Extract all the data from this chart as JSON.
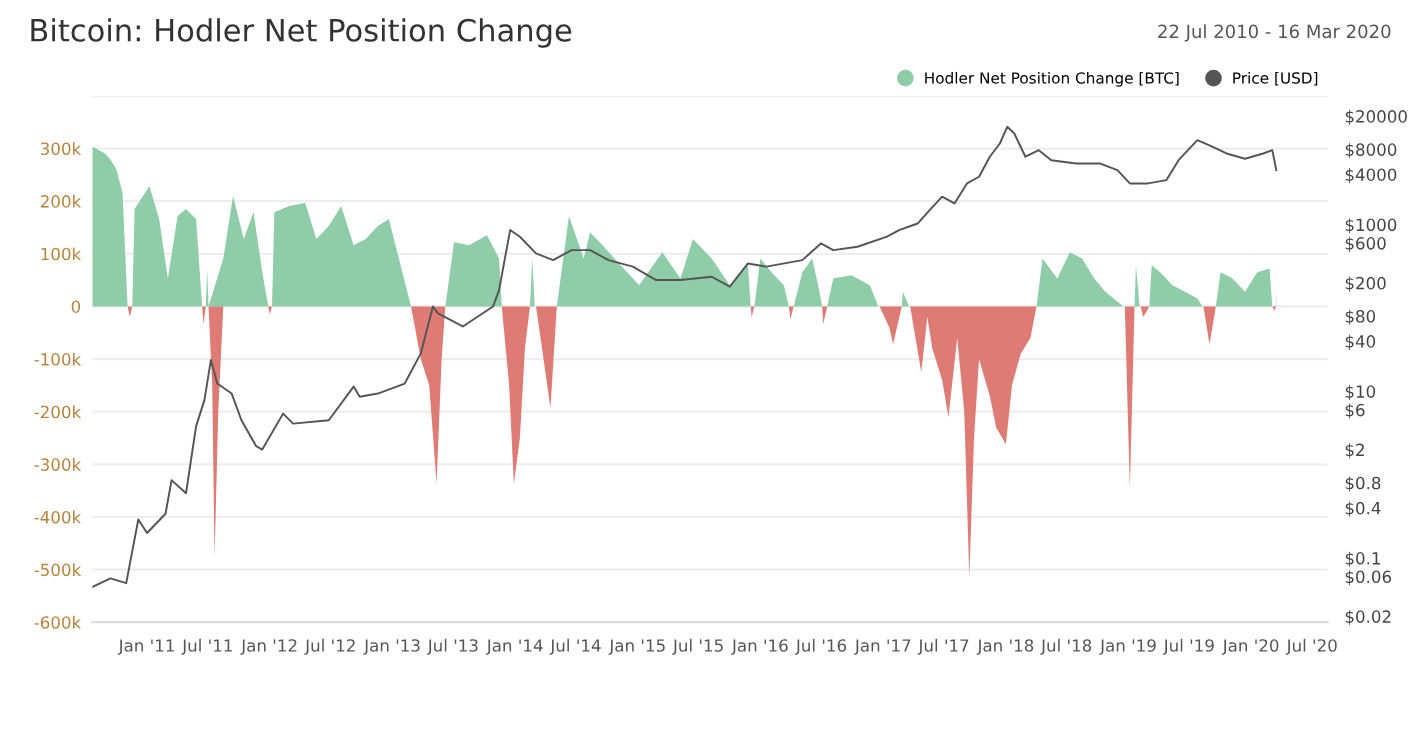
{
  "chart_data": {
    "type": "area",
    "title": "Bitcoin: Hodler Net Position Change",
    "subtitle": "22 Jul 2010 - 16 Mar 2020",
    "series": [
      {
        "name": "Hodler Net Position Change [BTC]",
        "color": "#8fcca8",
        "x": [
          "2010-07-22",
          "2010-08-30",
          "2010-09-14",
          "2010-10-02",
          "2010-10-20",
          "2010-11-04",
          "2010-11-18",
          "2010-11-25",
          "2011-01-08",
          "2011-02-06",
          "2011-03-04",
          "2011-04-02",
          "2011-04-27",
          "2011-05-27",
          "2011-06-14",
          "2011-06-25",
          "2011-06-29",
          "2011-07-03",
          "2011-08-16",
          "2011-09-14",
          "2011-10-16",
          "2011-11-14",
          "2011-12-10",
          "2011-12-28",
          "2012-01-08",
          "2012-01-15",
          "2012-02-28",
          "2012-04-16",
          "2012-05-19",
          "2012-06-25",
          "2012-08-01",
          "2012-09-07",
          "2012-10-13",
          "2012-11-18",
          "2012-12-21",
          "2013-01-30",
          "2013-02-25",
          "2013-06-07",
          "2013-07-03",
          "2013-08-16",
          "2013-10-09",
          "2013-11-14",
          "2013-11-22",
          "2014-02-14",
          "2014-02-21",
          "2014-02-28",
          "2014-05-05",
          "2014-06-10",
          "2014-07-24",
          "2014-08-12",
          "2014-09-18",
          "2014-11-11",
          "2015-01-05",
          "2015-03-15",
          "2015-05-08",
          "2015-06-14",
          "2015-08-09",
          "2015-10-02",
          "2015-11-25",
          "2015-12-03",
          "2015-12-14",
          "2016-01-01",
          "2016-02-03",
          "2016-03-11",
          "2016-03-26",
          "2016-04-09",
          "2016-05-05",
          "2016-06-03",
          "2016-06-21",
          "2016-07-03",
          "2016-07-18",
          "2016-08-05",
          "2016-09-28",
          "2016-11-22",
          "2016-12-17",
          "2017-02-25",
          "2017-02-28",
          "2017-03-19",
          "2018-04-02",
          "2018-04-20",
          "2018-06-03",
          "2018-07-10",
          "2018-08-16",
          "2018-09-21",
          "2018-10-24",
          "2018-12-17",
          "2019-01-19",
          "2019-01-23",
          "2019-02-03",
          "2019-03-04",
          "2019-03-11",
          "2019-04-05",
          "2019-05-12",
          "2019-06-18",
          "2019-07-25",
          "2019-08-09",
          "2019-09-18",
          "2019-10-02",
          "2019-11-07",
          "2019-12-14",
          "2020-01-19",
          "2020-02-25",
          "2020-03-04",
          "2020-03-15",
          "2020-03-16"
        ],
        "values": [
          304000,
          290000,
          279000,
          260000,
          216000,
          0,
          0,
          185000,
          229000,
          166000,
          53000,
          172000,
          185000,
          166000,
          0,
          0,
          72000,
          0,
          91000,
          210000,
          128000,
          179000,
          65000,
          0,
          0,
          179000,
          191000,
          197000,
          128000,
          153000,
          191000,
          116000,
          128000,
          153000,
          166000,
          65000,
          0,
          0,
          122000,
          116000,
          135000,
          91000,
          0,
          0,
          91000,
          0,
          0,
          172000,
          91000,
          141000,
          116000,
          78000,
          40000,
          103000,
          53000,
          128000,
          91000,
          40000,
          80000,
          0,
          0,
          91000,
          65000,
          40000,
          0,
          0,
          65000,
          91000,
          40000,
          0,
          0,
          53000,
          59000,
          40000,
          0,
          0,
          28000,
          0,
          0,
          91000,
          53000,
          103000,
          91000,
          53000,
          28000,
          0,
          0,
          78000,
          0,
          0,
          78000,
          65000,
          40000,
          28000,
          15000,
          0,
          0,
          65000,
          53000,
          28000,
          65000,
          72000,
          0,
          0,
          40000
        ]
      },
      {
        "color": "#de7b74",
        "x": [
          "2010-11-04",
          "2010-11-11",
          "2010-11-18",
          "2011-06-14",
          "2011-06-18",
          "2011-06-25",
          "2011-07-03",
          "2011-07-14",
          "2011-07-21",
          "2011-08-01",
          "2011-08-16",
          "2011-12-28",
          "2012-01-01",
          "2012-01-08",
          "2013-02-25",
          "2013-03-26",
          "2013-04-20",
          "2013-05-12",
          "2013-05-27",
          "2013-06-07",
          "2013-11-22",
          "2013-12-14",
          "2013-12-28",
          "2014-01-15",
          "2014-01-30",
          "2014-02-14",
          "2014-03-04",
          "2014-03-22",
          "2014-04-16",
          "2014-05-05",
          "2015-12-03",
          "2015-12-06",
          "2015-12-14",
          "2016-03-26",
          "2016-03-30",
          "2016-04-09",
          "2016-07-03",
          "2016-07-06",
          "2016-07-18",
          "2016-12-21",
          "2017-01-19",
          "2017-01-30",
          "2017-02-25",
          "2017-03-22",
          "2017-04-24",
          "2017-05-12",
          "2017-05-27",
          "2017-06-25",
          "2017-07-14",
          "2017-08-09",
          "2017-08-30",
          "2017-09-14",
          "2017-09-28",
          "2017-10-13",
          "2017-11-14",
          "2017-12-03",
          "2018-01-01",
          "2018-01-19",
          "2018-02-14",
          "2018-03-15",
          "2018-04-02",
          "2018-12-21",
          "2019-01-05",
          "2019-01-19",
          "2019-02-06",
          "2019-02-14",
          "2019-03-04",
          "2019-08-12",
          "2019-08-30",
          "2019-09-18",
          "2020-03-04",
          "2020-03-11",
          "2020-03-15"
        ],
        "values": [
          0,
          -20000,
          0,
          0,
          -34000,
          0,
          0,
          -150000,
          -477000,
          -200000,
          0,
          0,
          -15000,
          0,
          0,
          -100000,
          -150000,
          -337000,
          -100000,
          0,
          0,
          -150000,
          -337000,
          -250000,
          -80000,
          0,
          0,
          -80000,
          -193000,
          0,
          0,
          -20000,
          0,
          0,
          -25000,
          0,
          0,
          -34000,
          0,
          0,
          -40000,
          -72000,
          0,
          0,
          -125000,
          -20000,
          -80000,
          -140000,
          -210000,
          -60000,
          -200000,
          -515000,
          -250000,
          -100000,
          -170000,
          -230000,
          -262000,
          -150000,
          -90000,
          -60000,
          0,
          0,
          -345000,
          0,
          0,
          -20000,
          0,
          0,
          -72000,
          0,
          0,
          -8000,
          0
        ]
      },
      {
        "name": "Price [USD]",
        "color": "#555555",
        "type": "line",
        "axis": "y2",
        "x": [
          "2010-07-22",
          "2010-09-14",
          "2010-10-31",
          "2010-11-11",
          "2010-12-06",
          "2011-01-01",
          "2011-02-25",
          "2011-03-15",
          "2011-04-27",
          "2011-05-27",
          "2011-06-21",
          "2011-07-10",
          "2011-07-29",
          "2011-09-10",
          "2011-10-09",
          "2011-11-22",
          "2011-12-10",
          "2012-02-10",
          "2012-03-11",
          "2012-06-25",
          "2012-09-07",
          "2012-09-25",
          "2012-11-18",
          "2013-02-06",
          "2013-03-26",
          "2013-05-01",
          "2013-05-16",
          "2013-07-29",
          "2013-10-27",
          "2013-11-14",
          "2013-12-17",
          "2014-01-15",
          "2014-03-04",
          "2014-04-24",
          "2014-06-18",
          "2014-08-12",
          "2014-10-06",
          "2014-12-17",
          "2015-02-25",
          "2015-05-08",
          "2015-08-09",
          "2015-10-02",
          "2015-11-25",
          "2016-01-19",
          "2016-05-05",
          "2016-06-29",
          "2016-08-05",
          "2016-10-16",
          "2017-01-12",
          "2017-02-17",
          "2017-04-13",
          "2017-05-19",
          "2017-06-25",
          "2017-08-01",
          "2017-09-07",
          "2017-10-13",
          "2017-11-14",
          "2017-12-14",
          "2018-01-05",
          "2018-01-26",
          "2018-02-28",
          "2018-04-09",
          "2018-05-16",
          "2018-07-29",
          "2018-10-09",
          "2018-11-29",
          "2019-01-05",
          "2019-02-28",
          "2019-04-24",
          "2019-05-30",
          "2019-07-25",
          "2019-08-30",
          "2019-10-20",
          "2019-12-14",
          "2020-02-06",
          "2020-03-04",
          "2020-03-16"
        ],
        "values": [
          0.045,
          0.057,
          0.05,
          0.086,
          0.29,
          0.2,
          0.34,
          0.86,
          0.6,
          3.8,
          7.9,
          23.7,
          12.4,
          9.4,
          4.5,
          2.2,
          2.0,
          5.4,
          4.1,
          4.5,
          11.4,
          8.6,
          9.4,
          12.4,
          28.5,
          104,
          86,
          60,
          104,
          164,
          860,
          716,
          451,
          375,
          494,
          494,
          375,
          313,
          216,
          216,
          237,
          180,
          342,
          313,
          375,
          594,
          494,
          542,
          716,
          860,
          1030,
          1493,
          2163,
          1795,
          3120,
          3750,
          6520,
          9400,
          14900,
          12400,
          6520,
          7820,
          5930,
          5400,
          5400,
          4500,
          3120,
          3120,
          3420,
          5930,
          10300,
          8900,
          7130,
          6170,
          7130,
          7820,
          4500
        ]
      }
    ],
    "xlim": [
      "2010-07-22",
      "2020-08-16"
    ],
    "xticks": [
      {
        "value": "2011-01-01",
        "label": "Jan '11"
      },
      {
        "value": "2011-07-01",
        "label": "Jul '11"
      },
      {
        "value": "2012-01-01",
        "label": "Jan '12"
      },
      {
        "value": "2012-07-01",
        "label": "Jul '12"
      },
      {
        "value": "2013-01-01",
        "label": "Jan '13"
      },
      {
        "value": "2013-07-01",
        "label": "Jul '13"
      },
      {
        "value": "2014-01-01",
        "label": "Jan '14"
      },
      {
        "value": "2014-07-01",
        "label": "Jul '14"
      },
      {
        "value": "2015-01-01",
        "label": "Jan '15"
      },
      {
        "value": "2015-07-01",
        "label": "Jul '15"
      },
      {
        "value": "2016-01-01",
        "label": "Jan '16"
      },
      {
        "value": "2016-07-01",
        "label": "Jul '16"
      },
      {
        "value": "2017-01-01",
        "label": "Jan '17"
      },
      {
        "value": "2017-07-01",
        "label": "Jul '17"
      },
      {
        "value": "2018-01-01",
        "label": "Jan '18"
      },
      {
        "value": "2018-07-01",
        "label": "Jul '18"
      },
      {
        "value": "2019-01-01",
        "label": "Jan '19"
      },
      {
        "value": "2019-07-01",
        "label": "Jul '19"
      },
      {
        "value": "2020-01-01",
        "label": "Jan '20"
      },
      {
        "value": "2020-07-01",
        "label": "Jul '20"
      }
    ],
    "ylim": [
      -600000,
      400000
    ],
    "yticks": [
      {
        "value": -600000,
        "label": "-600k"
      },
      {
        "value": -500000,
        "label": "-500k"
      },
      {
        "value": -400000,
        "label": "-400k"
      },
      {
        "value": -300000,
        "label": "-300k"
      },
      {
        "value": -200000,
        "label": "-200k"
      },
      {
        "value": -100000,
        "label": "-100k"
      },
      0,
      {
        "value": 100000,
        "label": "100k"
      },
      {
        "value": 200000,
        "label": "200k"
      },
      {
        "value": 300000,
        "label": "300k"
      },
      {
        "value": 400000,
        "label": null
      }
    ],
    "log": "y2",
    "y2lim": [
      0.017,
      35000
    ],
    "y2ticks": [
      {
        "value": 0.02,
        "label": "$0.02"
      },
      {
        "value": 0.06,
        "label": "$0.06"
      },
      {
        "value": 0.1,
        "label": "$0.1"
      },
      {
        "value": 0.4,
        "label": "$0.4"
      },
      {
        "value": 0.8,
        "label": "$0.8"
      },
      {
        "value": 2,
        "label": "$2"
      },
      {
        "value": 6,
        "label": "$6"
      },
      {
        "value": 10,
        "label": "$10"
      },
      {
        "value": 40,
        "label": "$40"
      },
      {
        "value": 80,
        "label": "$80"
      },
      {
        "value": 200,
        "label": "$200"
      },
      {
        "value": 600,
        "label": "$600"
      },
      {
        "value": 1000,
        "label": "$1000"
      },
      {
        "value": 4000,
        "label": "$4000"
      },
      {
        "value": 8000,
        "label": "$8000"
      },
      {
        "value": 20000,
        "label": "$20000"
      }
    ],
    "grid": "y",
    "legend": "top right"
  }
}
